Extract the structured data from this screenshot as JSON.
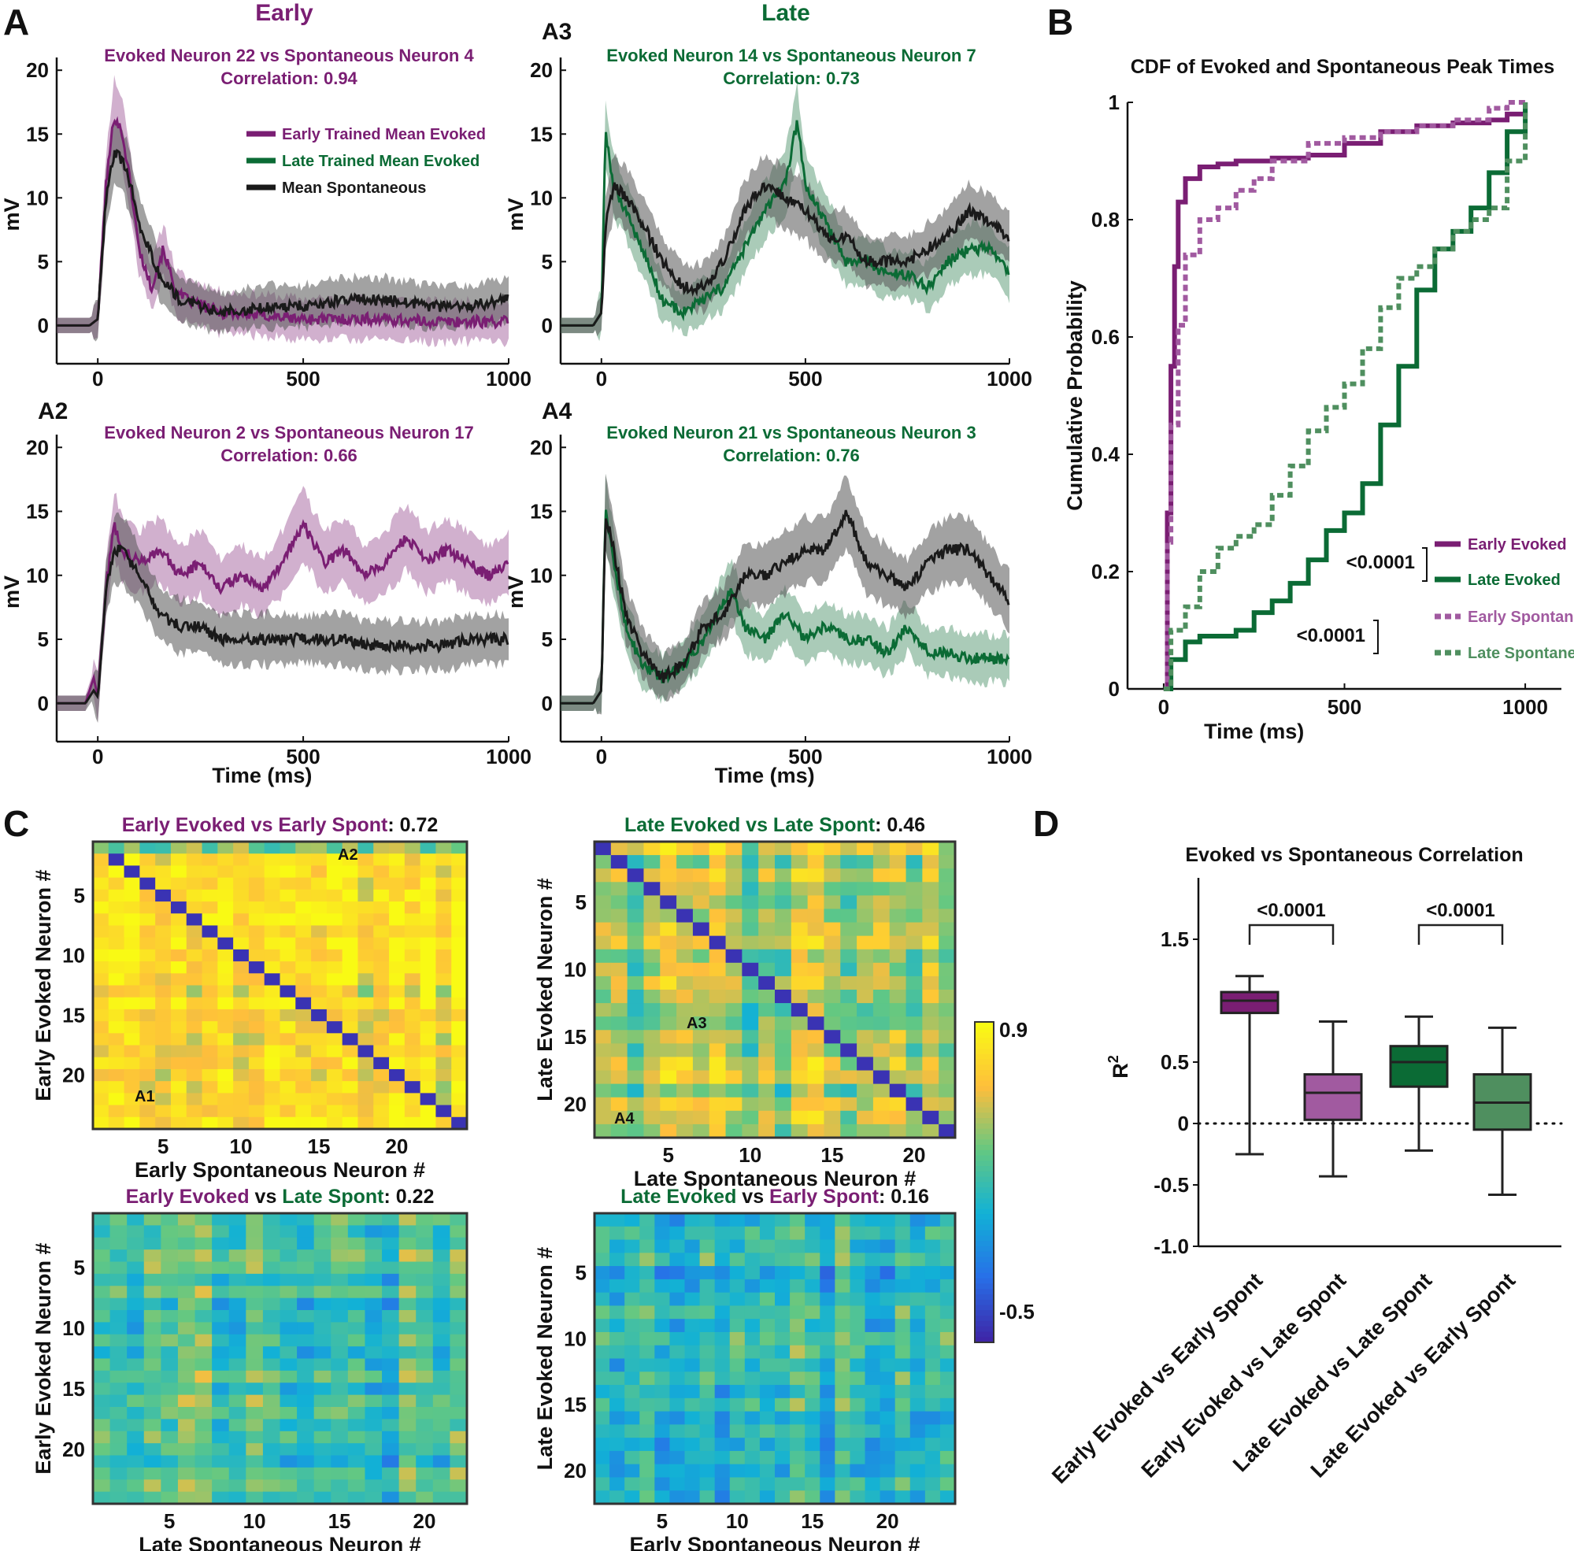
{
  "colors": {
    "early": "#7a1e73",
    "early_light": "#a15aa0",
    "late": "#0b6b35",
    "late_light": "#4f8f5f",
    "spont": "#1a1a1a",
    "axis": "#111111"
  },
  "labels": {
    "A": "A",
    "B": "B",
    "C": "C",
    "D": "D",
    "A2": "A2",
    "A3": "A3",
    "A4": "A4",
    "early_header": "Early",
    "late_header": "Late"
  },
  "panel_A": {
    "xlabel": "Time (ms)",
    "ylabel": "mV",
    "xticks": [
      0,
      500,
      1000
    ],
    "yticks": [
      0,
      5,
      10,
      15,
      20
    ],
    "xlim": [
      -100,
      1000
    ],
    "ylim": [
      -3,
      21
    ],
    "legend": {
      "early": "Early Trained Mean Evoked",
      "late": "Late Trained Mean Evoked",
      "spont": "Mean Spontaneous"
    },
    "plots": [
      {
        "id": "A1",
        "title1": "Evoked Neuron 22 vs Spontaneous Neuron 4",
        "title2": "Correlation: 0.94",
        "group": "early"
      },
      {
        "id": "A3",
        "title1": "Evoked Neuron 14 vs Spontaneous Neuron 7",
        "title2": "Correlation: 0.73",
        "group": "late"
      },
      {
        "id": "A2",
        "title1": "Evoked Neuron 2 vs Spontaneous Neuron 17",
        "title2": "Correlation: 0.66",
        "group": "early"
      },
      {
        "id": "A4",
        "title1": "Evoked Neuron 21 vs Spontaneous Neuron 3",
        "title2": "Correlation: 0.76",
        "group": "late"
      }
    ]
  },
  "panel_B": {
    "title": "CDF of Evoked and Spontaneous Peak Times",
    "xlabel": "Time (ms)",
    "ylabel": "Cumulative Probability",
    "xticks": [
      0,
      500,
      1000
    ],
    "yticks": [
      0,
      0.2,
      0.4,
      0.6,
      0.8,
      1
    ],
    "ytick_labels": [
      "0",
      "0.2",
      "0.4",
      "0.6",
      "0.8",
      "1"
    ],
    "legend": {
      "early_evoked": "Early Evoked",
      "late_evoked": "Late Evoked",
      "early_spont": "Early Spontaneous",
      "late_spont": "Late Spontaneous"
    },
    "pvalue_evoked": "<0.0001",
    "pvalue_spont": "<0.0001"
  },
  "panel_C": {
    "colorbar": {
      "max_label": "0.9",
      "min_label": "-0.5",
      "max": 0.9,
      "min": -0.5
    },
    "heatmaps": [
      {
        "title_part1": "Early Evoked vs Early Spont",
        "title_part2": ":",
        "title_value": "0.72",
        "xlabel": "Early Spontaneous Neuron #",
        "ylabel": "Early Evoked Neuron #",
        "xcolor": "early",
        "ycolor": "early",
        "mean": 0.72,
        "annotations": [
          "A2",
          "A1"
        ]
      },
      {
        "title_part1": "Late Evoked vs Late Spont",
        "title_part2": ":",
        "title_value": "0.46",
        "xlabel": "Late Spontaneous Neuron #",
        "ylabel": "Late Evoked Neuron #",
        "xcolor": "late",
        "ycolor": "late",
        "mean": 0.46,
        "annotations": [
          "A3",
          "A4"
        ]
      },
      {
        "title_part1": "Early Evoked",
        "title_mid": " vs ",
        "title_part2": "Late Spont",
        "title_value": "0.22",
        "xlabel": "Late Spontaneous Neuron #",
        "ylabel": "Early Evoked Neuron #",
        "xcolor": "late",
        "ycolor": "early",
        "mean": 0.22
      },
      {
        "title_part1": "Late Evoked",
        "title_mid": " vs ",
        "title_part2": "Early Spont",
        "title_value": "0.16",
        "xlabel": "Early Spontaneous Neuron #",
        "ylabel": "Late Evoked Neuron #",
        "xcolor": "early",
        "ycolor": "late",
        "mean": 0.16
      }
    ],
    "ticks_22": [
      5,
      10,
      15,
      20
    ],
    "ticks_24": [
      5,
      10,
      15,
      20
    ]
  },
  "panel_D": {
    "title": "Evoked vs Spontaneous Correlation",
    "ylabel": "R",
    "ylabel_sup": "2",
    "yticks": [
      -1.0,
      -0.5,
      0,
      0.5,
      1.5
    ],
    "ytick_labels": [
      "-1.0",
      "-0.5",
      "0",
      "0.5",
      "1.5"
    ],
    "pvalue_left": "<0.0001",
    "pvalue_right": "<0.0001"
  },
  "chart_data": [
    {
      "type": "line",
      "title": "Evoked Neuron 22 vs Spontaneous Neuron 4 — Correlation: 0.94",
      "xlabel": "Time (ms)",
      "ylabel": "mV",
      "xlim": [
        -100,
        1000
      ],
      "ylim": [
        -3,
        21
      ],
      "series": [
        {
          "name": "Early Trained Mean Evoked",
          "x": [
            -100,
            -20,
            0,
            20,
            40,
            60,
            80,
            100,
            130,
            160,
            190,
            220,
            300,
            400,
            500,
            600,
            700,
            800,
            1000
          ],
          "values": [
            0,
            0,
            0.5,
            11,
            16.5,
            15,
            11,
            6,
            3,
            6,
            2.5,
            2,
            1,
            0.8,
            0.5,
            0.5,
            0.5,
            0.3,
            0.3
          ]
        },
        {
          "name": "Mean Spontaneous",
          "x": [
            -100,
            -20,
            0,
            20,
            40,
            60,
            80,
            100,
            150,
            200,
            300,
            400,
            500,
            600,
            700,
            800,
            900,
            1000
          ],
          "values": [
            0,
            0,
            0.5,
            10,
            13.5,
            13,
            11,
            8,
            4,
            2,
            1,
            1.5,
            1.5,
            2,
            2,
            1.5,
            1.5,
            2
          ]
        }
      ]
    },
    {
      "type": "line",
      "title": "Evoked Neuron 14 vs Spontaneous Neuron 7 — Correlation: 0.73",
      "xlabel": "Time (ms)",
      "ylabel": "mV",
      "xlim": [
        -100,
        1000
      ],
      "ylim": [
        -3,
        21
      ],
      "series": [
        {
          "name": "Late Trained Mean Evoked",
          "x": [
            -100,
            -20,
            0,
            10,
            30,
            60,
            100,
            150,
            200,
            250,
            300,
            350,
            400,
            450,
            480,
            500,
            550,
            600,
            650,
            700,
            750,
            800,
            850,
            900,
            950,
            1000
          ],
          "values": [
            0,
            0,
            1,
            15,
            11,
            9,
            6,
            2,
            1,
            2,
            3,
            6,
            9,
            11,
            16,
            11,
            8,
            5,
            5,
            4,
            4,
            3,
            5,
            6,
            6,
            4
          ]
        },
        {
          "name": "Mean Spontaneous",
          "x": [
            -100,
            -20,
            0,
            10,
            30,
            60,
            100,
            150,
            200,
            250,
            300,
            350,
            400,
            450,
            500,
            550,
            600,
            650,
            700,
            750,
            800,
            850,
            900,
            950,
            1000
          ],
          "values": [
            0,
            0,
            1,
            8,
            11,
            10,
            8,
            5,
            3,
            3,
            5,
            9,
            11,
            10,
            9,
            7,
            7,
            5,
            5,
            5,
            6,
            7,
            9,
            8,
            7
          ]
        }
      ]
    },
    {
      "type": "line",
      "title": "Evoked Neuron 2 vs Spontaneous Neuron 17 — Correlation: 0.66",
      "xlabel": "Time (ms)",
      "ylabel": "mV",
      "xlim": [
        -100,
        1000
      ],
      "ylim": [
        -3,
        21
      ],
      "series": [
        {
          "name": "Early Trained Mean Evoked",
          "x": [
            -100,
            -30,
            -10,
            0,
            20,
            40,
            60,
            100,
            150,
            200,
            250,
            300,
            350,
            400,
            450,
            500,
            550,
            600,
            650,
            700,
            750,
            800,
            850,
            900,
            950,
            1000
          ],
          "values": [
            0,
            0,
            2,
            0.5,
            9,
            14,
            12,
            11,
            12,
            10,
            11,
            9,
            10,
            9,
            11,
            14,
            11,
            12,
            10,
            11,
            13,
            11,
            12,
            11,
            10,
            11
          ]
        },
        {
          "name": "Mean Spontaneous",
          "x": [
            -100,
            -30,
            -10,
            0,
            20,
            40,
            60,
            100,
            150,
            200,
            250,
            300,
            350,
            400,
            450,
            500,
            550,
            600,
            650,
            700,
            750,
            800,
            850,
            900,
            950,
            1000
          ],
          "values": [
            0,
            0,
            1,
            0.5,
            9,
            12,
            12,
            10,
            7,
            6,
            6,
            5,
            5,
            5,
            5,
            5,
            5,
            5,
            4.5,
            4.5,
            4.5,
            4.5,
            4.5,
            5,
            5,
            5
          ]
        }
      ]
    },
    {
      "type": "line",
      "title": "Evoked Neuron 21 vs Spontaneous Neuron 3 — Correlation: 0.76",
      "xlabel": "Time (ms)",
      "ylabel": "mV",
      "xlim": [
        -100,
        1000
      ],
      "ylim": [
        -3,
        21
      ],
      "series": [
        {
          "name": "Late Trained Mean Evoked",
          "x": [
            -100,
            -20,
            0,
            10,
            30,
            60,
            100,
            150,
            200,
            250,
            300,
            320,
            350,
            400,
            450,
            500,
            550,
            600,
            650,
            700,
            750,
            800,
            850,
            900,
            950,
            1000
          ],
          "values": [
            0,
            0,
            1,
            15,
            11,
            6,
            3,
            2,
            3,
            5,
            8,
            9,
            6,
            5,
            7,
            5,
            6,
            5,
            5,
            4,
            6,
            4,
            4,
            3.5,
            3.5,
            3.5
          ]
        },
        {
          "name": "Mean Spontaneous",
          "x": [
            -100,
            -20,
            0,
            10,
            30,
            60,
            100,
            150,
            200,
            250,
            300,
            350,
            400,
            450,
            500,
            550,
            600,
            650,
            700,
            750,
            800,
            850,
            900,
            950,
            1000
          ],
          "values": [
            0,
            0,
            1,
            15,
            12,
            7,
            4,
            2,
            3,
            6,
            7,
            10,
            10,
            11,
            12,
            12,
            15,
            11,
            10,
            9,
            11,
            12,
            12,
            10,
            8
          ]
        }
      ]
    },
    {
      "type": "line",
      "title": "CDF of Evoked and Spontaneous Peak Times",
      "xlabel": "Time (ms)",
      "ylabel": "Cumulative Probability",
      "xlim": [
        -100,
        1100
      ],
      "ylim": [
        0,
        1
      ],
      "series": [
        {
          "name": "Early Evoked",
          "style": "solid",
          "x": [
            0,
            10,
            20,
            30,
            40,
            60,
            100,
            150,
            200,
            250,
            300,
            400,
            500,
            600,
            700,
            800,
            900,
            950,
            1000
          ],
          "values": [
            0,
            0.3,
            0.55,
            0.72,
            0.83,
            0.87,
            0.89,
            0.895,
            0.9,
            0.9,
            0.905,
            0.91,
            0.93,
            0.95,
            0.96,
            0.965,
            0.97,
            0.98,
            1
          ]
        },
        {
          "name": "Late Evoked",
          "style": "solid",
          "x": [
            0,
            20,
            60,
            100,
            150,
            200,
            250,
            300,
            350,
            400,
            450,
            500,
            550,
            600,
            650,
            700,
            750,
            800,
            850,
            900,
            950,
            1000
          ],
          "values": [
            0,
            0.05,
            0.08,
            0.09,
            0.09,
            0.1,
            0.13,
            0.15,
            0.18,
            0.22,
            0.27,
            0.3,
            0.35,
            0.45,
            0.55,
            0.68,
            0.75,
            0.78,
            0.82,
            0.88,
            0.95,
            1
          ]
        },
        {
          "name": "Early Spontaneous",
          "style": "dotted",
          "x": [
            0,
            10,
            20,
            40,
            60,
            100,
            150,
            200,
            250,
            300,
            400,
            500,
            600,
            700,
            800,
            900,
            950,
            1000
          ],
          "values": [
            0,
            0.25,
            0.45,
            0.62,
            0.74,
            0.8,
            0.82,
            0.85,
            0.87,
            0.9,
            0.93,
            0.94,
            0.95,
            0.96,
            0.97,
            0.99,
            1,
            1
          ]
        },
        {
          "name": "Late Spontaneous",
          "style": "dotted",
          "x": [
            0,
            20,
            60,
            100,
            150,
            200,
            250,
            300,
            350,
            400,
            450,
            500,
            550,
            600,
            650,
            700,
            750,
            800,
            850,
            900,
            950,
            1000
          ],
          "values": [
            0,
            0.1,
            0.14,
            0.2,
            0.24,
            0.26,
            0.28,
            0.33,
            0.38,
            0.44,
            0.48,
            0.52,
            0.58,
            0.65,
            0.7,
            0.72,
            0.75,
            0.78,
            0.8,
            0.82,
            0.9,
            1
          ]
        }
      ]
    },
    {
      "type": "heatmap",
      "title": "Early Evoked vs Early Spont: 0.72",
      "xlabel": "Early Spontaneous Neuron #",
      "ylabel": "Early Evoked Neuron #",
      "nx": 24,
      "ny": 24,
      "mean": 0.72,
      "range": [
        -0.5,
        0.9
      ]
    },
    {
      "type": "heatmap",
      "title": "Late Evoked vs Late Spont: 0.46",
      "xlabel": "Late Spontaneous Neuron #",
      "ylabel": "Late Evoked Neuron #",
      "nx": 22,
      "ny": 22,
      "mean": 0.46,
      "range": [
        -0.5,
        0.9
      ]
    },
    {
      "type": "heatmap",
      "title": "Early Evoked vs Late Spont: 0.22",
      "xlabel": "Late Spontaneous Neuron #",
      "ylabel": "Early Evoked Neuron #",
      "nx": 22,
      "ny": 24,
      "mean": 0.22,
      "range": [
        -0.5,
        0.9
      ]
    },
    {
      "type": "heatmap",
      "title": "Late Evoked vs Early Spont: 0.16",
      "xlabel": "Early Spontaneous Neuron #",
      "ylabel": "Late Evoked Neuron #",
      "nx": 24,
      "ny": 22,
      "mean": 0.16,
      "range": [
        -0.5,
        0.9
      ]
    },
    {
      "type": "bar",
      "subtype": "boxplot",
      "title": "Evoked vs Spontaneous Correlation",
      "ylabel": "R2",
      "ylim": [
        -1.0,
        2.0
      ],
      "categories": [
        "Early Evoked vs Early Spont",
        "Early Evoked vs Late Spont",
        "Late Evoked vs Late Spont",
        "Late Evoked vs Early Spont"
      ],
      "series": [
        {
          "name": "min",
          "values": [
            -0.25,
            -0.43,
            -0.22,
            -0.58
          ]
        },
        {
          "name": "q1",
          "values": [
            0.9,
            0.03,
            0.3,
            -0.05
          ]
        },
        {
          "name": "median",
          "values": [
            1.0,
            0.25,
            0.5,
            0.17
          ]
        },
        {
          "name": "q3",
          "values": [
            1.07,
            0.4,
            0.63,
            0.4
          ]
        },
        {
          "name": "max",
          "values": [
            1.2,
            0.83,
            0.87,
            0.78
          ]
        }
      ]
    }
  ]
}
